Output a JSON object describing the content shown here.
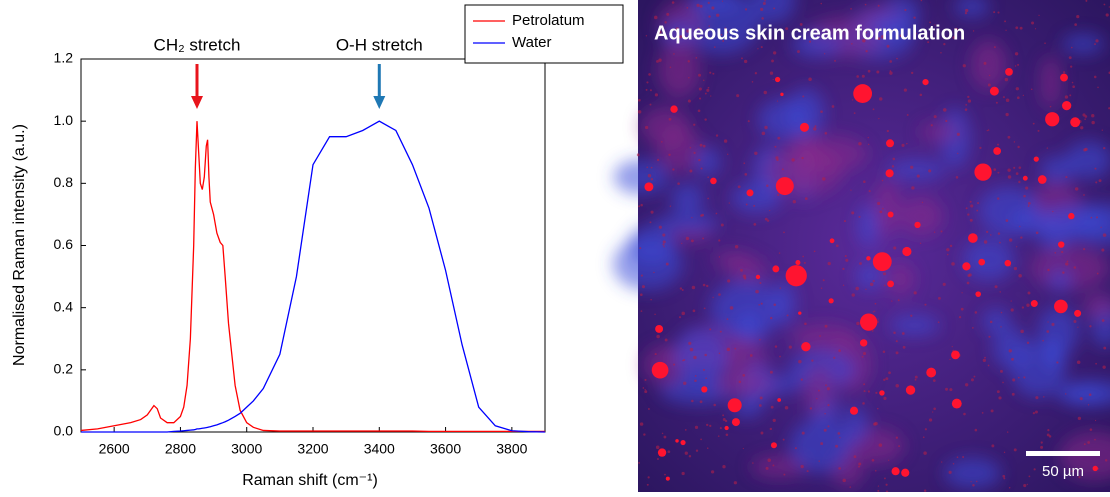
{
  "chart_data": {
    "type": "line",
    "x_label": "Raman shift (cm⁻¹)",
    "y_label": "Normalised Raman intensity (a.u.)",
    "xlim": [
      2500,
      3900
    ],
    "xticks": [
      2600,
      2800,
      3000,
      3200,
      3400,
      3600,
      3800
    ],
    "ylim": [
      0,
      1.2
    ],
    "yticks": [
      {
        "value": 0,
        "label": "0.0"
      },
      0.2,
      0.4,
      0.6,
      0.8,
      {
        "value": 1,
        "label": "1.0"
      },
      1.2
    ],
    "legend": "top-right",
    "x": [
      2500,
      2550,
      2600,
      2650,
      2680,
      2700,
      2710,
      2720,
      2730,
      2740,
      2760,
      2780,
      2800,
      2810,
      2820,
      2830,
      2840,
      2845,
      2850,
      2855,
      2860,
      2866,
      2872,
      2878,
      2882,
      2886,
      2890,
      2900,
      2910,
      2920,
      2928,
      2935,
      2945,
      2955,
      2965,
      2980,
      3000,
      3020,
      3050,
      3100,
      3150,
      3200,
      3250,
      3300,
      3350,
      3400,
      3450,
      3500,
      3550,
      3600,
      3650,
      3700,
      3750,
      3800,
      3850,
      3900
    ],
    "series": [
      {
        "name": "Petrolatum",
        "color": "#ff0000",
        "values": [
          0.005,
          0.01,
          0.02,
          0.03,
          0.04,
          0.055,
          0.07,
          0.085,
          0.075,
          0.045,
          0.03,
          0.03,
          0.05,
          0.08,
          0.15,
          0.3,
          0.6,
          0.85,
          1.0,
          0.9,
          0.8,
          0.78,
          0.82,
          0.92,
          0.94,
          0.82,
          0.74,
          0.7,
          0.64,
          0.61,
          0.6,
          0.5,
          0.35,
          0.25,
          0.15,
          0.07,
          0.03,
          0.015,
          0.005,
          0.003,
          0.003,
          0.003,
          0.003,
          0.003,
          0.003,
          0.003,
          0.003,
          0.003,
          0.002,
          0.002,
          0.002,
          0.002,
          0.002,
          0.002,
          0.002,
          0.002
        ]
      },
      {
        "name": "Water",
        "color": "#0000ff",
        "values": [
          0,
          0,
          0,
          0,
          0,
          0,
          0,
          0,
          0,
          0,
          0,
          0.002,
          0.003,
          0.004,
          0.005,
          0.006,
          0.007,
          0.008,
          0.01,
          0.01,
          0.011,
          0.012,
          0.013,
          0.014,
          0.015,
          0.016,
          0.017,
          0.02,
          0.023,
          0.027,
          0.03,
          0.033,
          0.038,
          0.044,
          0.05,
          0.06,
          0.08,
          0.1,
          0.14,
          0.25,
          0.5,
          0.86,
          0.95,
          0.95,
          0.97,
          1.0,
          0.97,
          0.86,
          0.72,
          0.52,
          0.28,
          0.08,
          0.02,
          0.004,
          0.001,
          0
        ]
      }
    ],
    "annotations": [
      {
        "text": "CH₂ stretch",
        "x": 2850,
        "color": "#e8141c"
      },
      {
        "text": "O-H stretch",
        "x": 3400,
        "color": "#1f78b4"
      }
    ]
  },
  "image_panel": {
    "title": "Aqueous skin cream formulation",
    "scale_bar_label": "50 µm"
  }
}
